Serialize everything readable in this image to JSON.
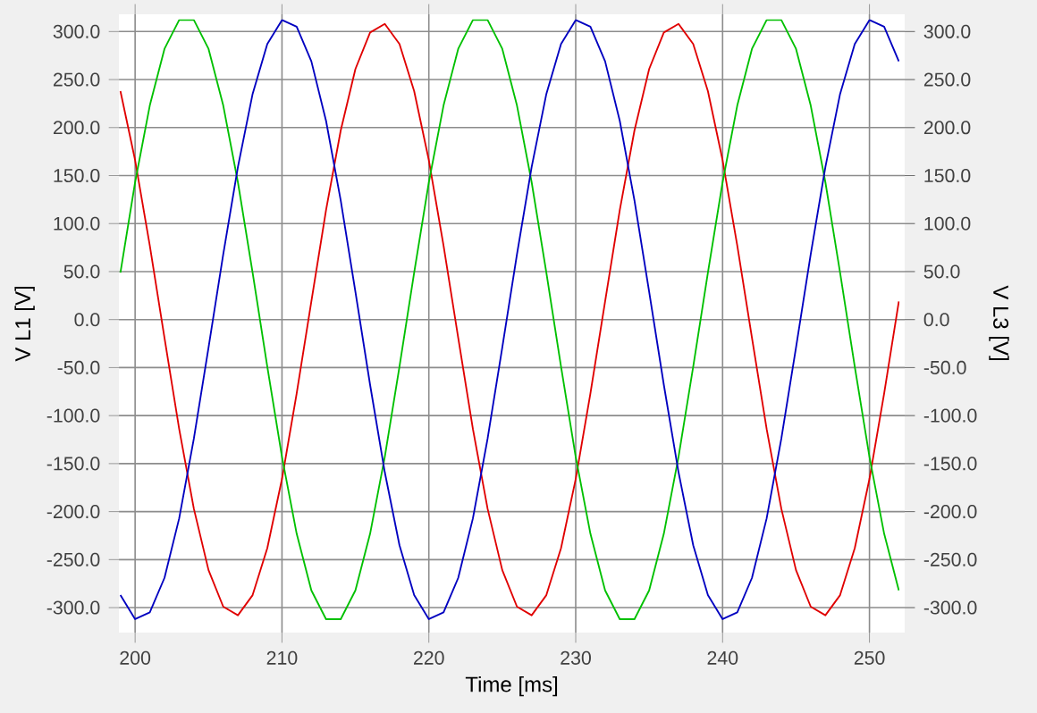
{
  "chart_data": {
    "type": "line",
    "xlabel": "Time [ms]",
    "ylabel": "V L1 [V]",
    "y2label": "V L3 [V]",
    "x": [
      199,
      200,
      201,
      202,
      203,
      204,
      205,
      206,
      207,
      208,
      209,
      210,
      211,
      212,
      213,
      214,
      215,
      216,
      217,
      218,
      219,
      220,
      221,
      222,
      223,
      224,
      225,
      226,
      227,
      228,
      229,
      230,
      231,
      232,
      233,
      234,
      235,
      236,
      237,
      238,
      239,
      240,
      241,
      242,
      243,
      244,
      245,
      246,
      247,
      248,
      249,
      250,
      251,
      252
    ],
    "series": [
      {
        "color": "#e00000",
        "values": [
          238,
          166,
          77,
          -19,
          -114,
          -197,
          -261,
          -299,
          -308,
          -287,
          -238,
          -166,
          -77,
          19,
          114,
          197,
          261,
          299,
          308,
          287,
          238,
          166,
          77,
          -19,
          -114,
          -197,
          -261,
          -299,
          -308,
          -287,
          -238,
          -166,
          -77,
          19,
          114,
          197,
          261,
          299,
          308,
          287,
          238,
          166,
          77,
          -19,
          -114,
          -197,
          -261,
          -299,
          -308,
          -287,
          -238,
          -166,
          -77,
          19
        ]
      },
      {
        "color": "#00c000",
        "values": [
          49,
          143,
          223,
          282,
          312,
          312,
          282,
          223,
          143,
          49,
          -49,
          -143,
          -223,
          -282,
          -312,
          -312,
          -282,
          -223,
          -143,
          -49,
          49,
          143,
          223,
          282,
          312,
          312,
          282,
          223,
          143,
          49,
          -49,
          -143,
          -223,
          -282,
          -312,
          -312,
          -282,
          -223,
          -143,
          -49,
          49,
          143,
          223,
          282,
          312,
          312,
          282,
          223,
          143,
          49,
          -49,
          -143,
          -223,
          -282
        ]
      },
      {
        "color": "#0000c0",
        "values": [
          -287,
          -312,
          -305,
          -269,
          -207,
          -124,
          -29,
          68,
          159,
          235,
          287,
          312,
          305,
          269,
          207,
          124,
          29,
          -68,
          -159,
          -235,
          -287,
          -312,
          -305,
          -269,
          -207,
          -124,
          -29,
          68,
          159,
          235,
          287,
          312,
          305,
          269,
          207,
          124,
          29,
          -68,
          -159,
          -235,
          -287,
          -312,
          -305,
          -269,
          -207,
          -124,
          -29,
          68,
          159,
          235,
          287,
          312,
          305,
          269
        ]
      }
    ],
    "xlim": [
      198.9,
      252.4
    ],
    "xticks": [
      200,
      210,
      220,
      230,
      240,
      250
    ],
    "ylim": [
      -326,
      318
    ],
    "yticks": [
      {
        "value": -300,
        "label": "-300.0"
      },
      {
        "value": -250,
        "label": "-250.0"
      },
      {
        "value": -200,
        "label": "-200.0"
      },
      {
        "value": -150,
        "label": "-150.0"
      },
      {
        "value": -100,
        "label": "-100.0"
      },
      {
        "value": -50,
        "label": "-50.0"
      },
      {
        "value": 0,
        "label": "0.0"
      },
      {
        "value": 50,
        "label": "50.0"
      },
      {
        "value": 100,
        "label": "100.0"
      },
      {
        "value": 150,
        "label": "150.0"
      },
      {
        "value": 200,
        "label": "200.0"
      },
      {
        "value": 250,
        "label": "250.0"
      },
      {
        "value": 300,
        "label": "300.0"
      }
    ],
    "y2lim": [
      -326,
      318
    ],
    "y2ticks": [
      {
        "value": -300,
        "label": "-300.0"
      },
      {
        "value": -250,
        "label": "-250.0"
      },
      {
        "value": -200,
        "label": "-200.0"
      },
      {
        "value": -150,
        "label": "-150.0"
      },
      {
        "value": -100,
        "label": "-100.0"
      },
      {
        "value": -50,
        "label": "-50.0"
      },
      {
        "value": 0,
        "label": "0.0"
      },
      {
        "value": 50,
        "label": "50.0"
      },
      {
        "value": 100,
        "label": "100.0"
      },
      {
        "value": 150,
        "label": "150.0"
      },
      {
        "value": 200,
        "label": "200.0"
      },
      {
        "value": 250,
        "label": "250.0"
      },
      {
        "value": 300,
        "label": "300.0"
      }
    ],
    "grid": true,
    "marker": "none",
    "line_style": "solid"
  }
}
